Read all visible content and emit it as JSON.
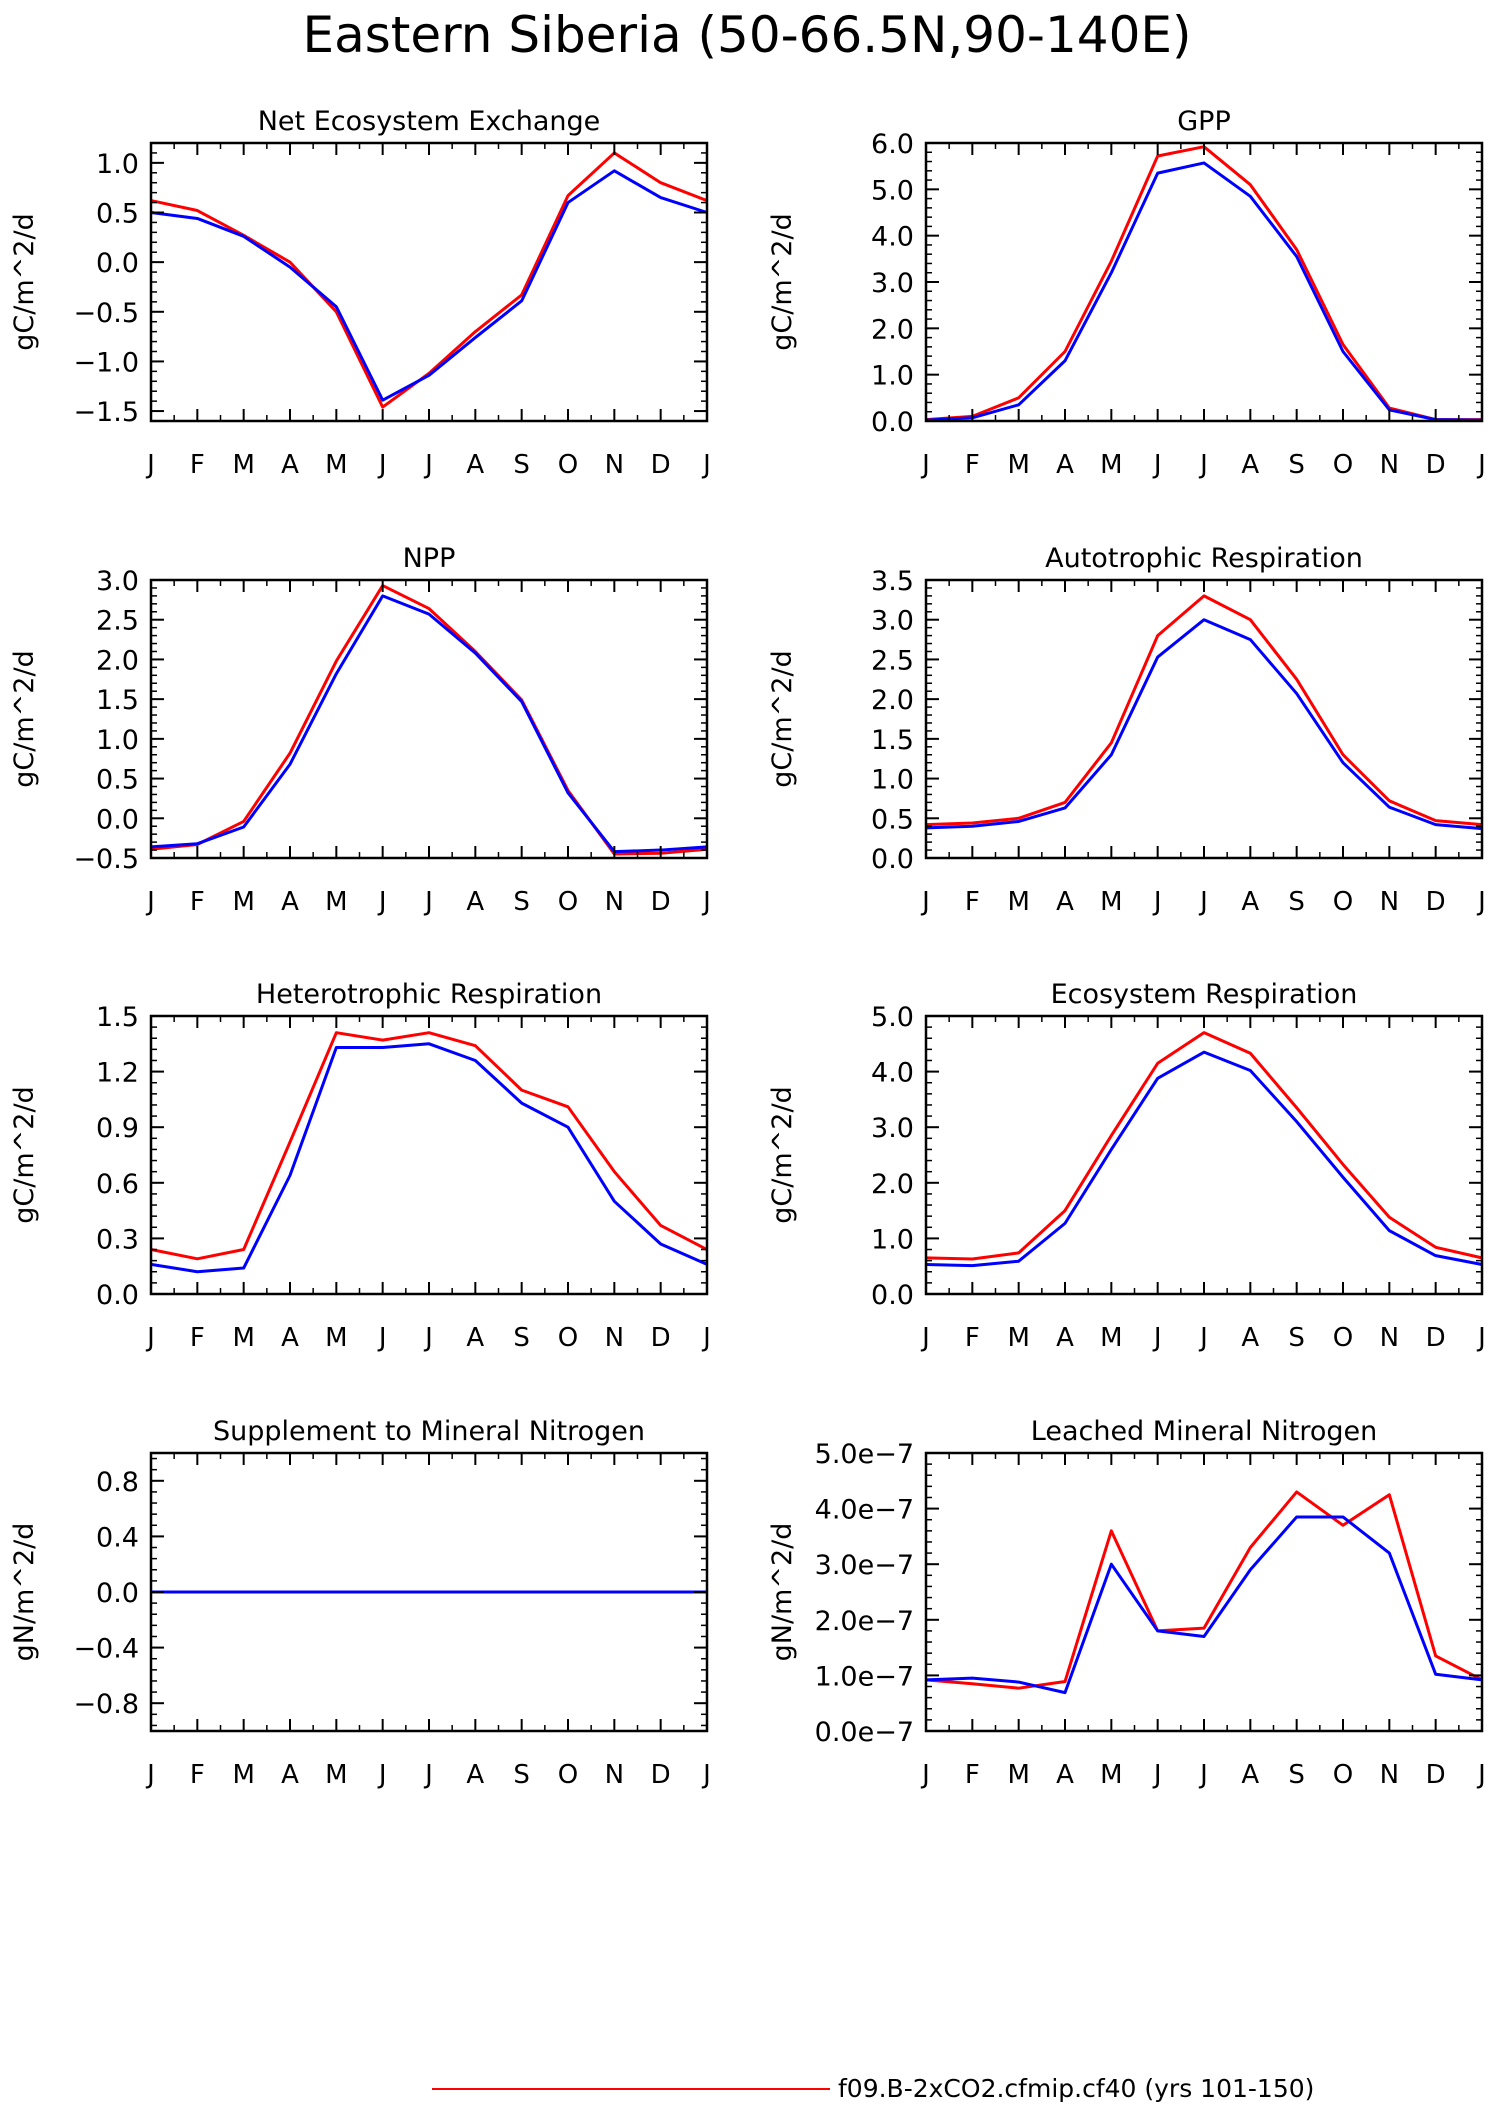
{
  "figure": {
    "title": "Eastern Siberia (50-66.5N,90-140E)",
    "legend": [
      {
        "label": "f09.B-2xCO2.cfmip.cf40 (yrs 101-150)",
        "color": "#ff0000"
      }
    ]
  },
  "chart_data": [
    {
      "type": "line",
      "title": "Net Ecosystem Exchange",
      "ylabel": "gC/m^2/d",
      "categories": [
        "J",
        "F",
        "M",
        "A",
        "M",
        "J",
        "J",
        "A",
        "S",
        "O",
        "N",
        "D",
        "J"
      ],
      "ylim": [
        -1.6,
        1.2
      ],
      "yticks": [
        1.0,
        0.5,
        0.0,
        -0.5,
        -1.0,
        -1.5
      ],
      "ytick_labels": [
        "1.0",
        "0.5",
        "0.0",
        "−0.5",
        "−1.0",
        "−1.5"
      ],
      "series": [
        {
          "color": "#ff0000",
          "values": [
            0.62,
            0.52,
            0.27,
            0.0,
            -0.5,
            -1.46,
            -1.12,
            -0.7,
            -0.33,
            0.67,
            1.1,
            0.8,
            0.62
          ]
        },
        {
          "color": "#0000ff",
          "values": [
            0.5,
            0.44,
            0.26,
            -0.05,
            -0.45,
            -1.39,
            -1.14,
            -0.76,
            -0.39,
            0.6,
            0.92,
            0.65,
            0.5
          ]
        }
      ]
    },
    {
      "type": "line",
      "title": "GPP",
      "ylabel": "gC/m^2/d",
      "categories": [
        "J",
        "F",
        "M",
        "A",
        "M",
        "J",
        "J",
        "A",
        "S",
        "O",
        "N",
        "D",
        "J"
      ],
      "ylim": [
        0,
        6
      ],
      "yticks": [
        6,
        5,
        4,
        3,
        2,
        1,
        0
      ],
      "ytick_labels": [
        "6.0",
        "5.0",
        "4.0",
        "3.0",
        "2.0",
        "1.0",
        "0.0"
      ],
      "series": [
        {
          "color": "#ff0000",
          "values": [
            0.03,
            0.1,
            0.5,
            1.5,
            3.45,
            5.72,
            5.92,
            5.1,
            3.7,
            1.65,
            0.28,
            0.03,
            0.03
          ]
        },
        {
          "color": "#0000ff",
          "values": [
            0.02,
            0.07,
            0.35,
            1.3,
            3.2,
            5.35,
            5.57,
            4.85,
            3.55,
            1.5,
            0.24,
            0.03,
            0.02
          ]
        }
      ]
    },
    {
      "type": "line",
      "title": "NPP",
      "ylabel": "gC/m^2/d",
      "categories": [
        "J",
        "F",
        "M",
        "A",
        "M",
        "J",
        "J",
        "A",
        "S",
        "O",
        "N",
        "D",
        "J"
      ],
      "ylim": [
        -0.5,
        3.0
      ],
      "yticks": [
        3.0,
        2.5,
        2.0,
        1.5,
        1.0,
        0.5,
        0.0,
        -0.5
      ],
      "ytick_labels": [
        "3.0",
        "2.5",
        "2.0",
        "1.5",
        "1.0",
        "0.5",
        "0.0",
        "−0.5"
      ],
      "series": [
        {
          "color": "#ff0000",
          "values": [
            -0.39,
            -0.33,
            -0.04,
            0.82,
            1.98,
            2.93,
            2.64,
            2.1,
            1.49,
            0.35,
            -0.45,
            -0.44,
            -0.39
          ]
        },
        {
          "color": "#0000ff",
          "values": [
            -0.36,
            -0.32,
            -0.11,
            0.68,
            1.82,
            2.8,
            2.57,
            2.08,
            1.47,
            0.32,
            -0.42,
            -0.4,
            -0.36
          ]
        }
      ]
    },
    {
      "type": "line",
      "title": "Autotrophic Respiration",
      "ylabel": "gC/m^2/d",
      "categories": [
        "J",
        "F",
        "M",
        "A",
        "M",
        "J",
        "J",
        "A",
        "S",
        "O",
        "N",
        "D",
        "J"
      ],
      "ylim": [
        0,
        3.5
      ],
      "yticks": [
        3.5,
        3.0,
        2.5,
        2.0,
        1.5,
        1.0,
        0.5,
        0.0
      ],
      "ytick_labels": [
        "3.5",
        "3.0",
        "2.5",
        "2.0",
        "1.5",
        "1.0",
        "0.5",
        "0.0"
      ],
      "series": [
        {
          "color": "#ff0000",
          "values": [
            0.42,
            0.44,
            0.5,
            0.7,
            1.45,
            2.8,
            3.3,
            3.0,
            2.25,
            1.3,
            0.72,
            0.47,
            0.42
          ]
        },
        {
          "color": "#0000ff",
          "values": [
            0.38,
            0.4,
            0.46,
            0.63,
            1.3,
            2.53,
            3.0,
            2.75,
            2.07,
            1.2,
            0.64,
            0.42,
            0.37
          ]
        }
      ]
    },
    {
      "type": "line",
      "title": "Heterotrophic Respiration",
      "ylabel": "gC/m^2/d",
      "categories": [
        "J",
        "F",
        "M",
        "A",
        "M",
        "J",
        "J",
        "A",
        "S",
        "O",
        "N",
        "D",
        "J"
      ],
      "ylim": [
        0,
        1.5
      ],
      "yticks": [
        1.5,
        1.2,
        0.9,
        0.6,
        0.3,
        0.0
      ],
      "ytick_labels": [
        "1.5",
        "1.2",
        "0.9",
        "0.6",
        "0.3",
        "0.0"
      ],
      "series": [
        {
          "color": "#ff0000",
          "values": [
            0.24,
            0.19,
            0.24,
            0.82,
            1.41,
            1.37,
            1.41,
            1.34,
            1.1,
            1.01,
            0.66,
            0.37,
            0.24
          ]
        },
        {
          "color": "#0000ff",
          "values": [
            0.16,
            0.12,
            0.14,
            0.64,
            1.33,
            1.33,
            1.35,
            1.26,
            1.03,
            0.9,
            0.5,
            0.27,
            0.16
          ]
        }
      ]
    },
    {
      "type": "line",
      "title": "Ecosystem Respiration",
      "ylabel": "gC/m^2/d",
      "categories": [
        "J",
        "F",
        "M",
        "A",
        "M",
        "J",
        "J",
        "A",
        "S",
        "O",
        "N",
        "D",
        "J"
      ],
      "ylim": [
        0,
        5
      ],
      "yticks": [
        5,
        4,
        3,
        2,
        1,
        0
      ],
      "ytick_labels": [
        "5.0",
        "4.0",
        "3.0",
        "2.0",
        "1.0",
        "0.0"
      ],
      "series": [
        {
          "color": "#ff0000",
          "values": [
            0.65,
            0.63,
            0.74,
            1.5,
            2.85,
            4.15,
            4.7,
            4.33,
            3.35,
            2.33,
            1.38,
            0.84,
            0.65
          ]
        },
        {
          "color": "#0000ff",
          "values": [
            0.53,
            0.51,
            0.59,
            1.27,
            2.6,
            3.88,
            4.35,
            4.02,
            3.1,
            2.1,
            1.14,
            0.69,
            0.53
          ]
        }
      ]
    },
    {
      "type": "line",
      "title": "Supplement to Mineral Nitrogen",
      "ylabel": "gN/m^2/d",
      "categories": [
        "J",
        "F",
        "M",
        "A",
        "M",
        "J",
        "J",
        "A",
        "S",
        "O",
        "N",
        "D",
        "J"
      ],
      "ylim": [
        -1.0,
        1.0
      ],
      "yticks": [
        0.8,
        0.4,
        0.0,
        -0.4,
        -0.8
      ],
      "ytick_labels": [
        "0.8",
        "0.4",
        "0.0",
        "−0.4",
        "−0.8"
      ],
      "series": [
        {
          "color": "#ff0000",
          "values": [
            0,
            0,
            0,
            0,
            0,
            0,
            0,
            0,
            0,
            0,
            0,
            0,
            0
          ]
        },
        {
          "color": "#0000ff",
          "values": [
            0,
            0,
            0,
            0,
            0,
            0,
            0,
            0,
            0,
            0,
            0,
            0,
            0
          ]
        }
      ]
    },
    {
      "type": "line",
      "title": "Leached Mineral Nitrogen",
      "ylabel": "gN/m^2/d",
      "categories": [
        "J",
        "F",
        "M",
        "A",
        "M",
        "J",
        "J",
        "A",
        "S",
        "O",
        "N",
        "D",
        "J"
      ],
      "ylim": [
        0,
        5e-07
      ],
      "yticks": [
        5e-07,
        4e-07,
        3e-07,
        2e-07,
        1e-07,
        0
      ],
      "ytick_labels": [
        "5.0e−7",
        "4.0e−7",
        "3.0e−7",
        "2.0e−7",
        "1.0e−7",
        "0.0e−7"
      ],
      "series": [
        {
          "color": "#ff0000",
          "values": [
            9.2e-08,
            8.5e-08,
            7.7e-08,
            8.9e-08,
            3.6e-07,
            1.8e-07,
            1.85e-07,
            3.3e-07,
            4.3e-07,
            3.7e-07,
            4.25e-07,
            1.35e-07,
            9.2e-08
          ]
        },
        {
          "color": "#0000ff",
          "values": [
            9.2e-08,
            9.5e-08,
            8.8e-08,
            6.9e-08,
            3e-07,
            1.8e-07,
            1.7e-07,
            2.9e-07,
            3.85e-07,
            3.85e-07,
            3.2e-07,
            1.02e-07,
            9.2e-08
          ]
        }
      ]
    }
  ]
}
